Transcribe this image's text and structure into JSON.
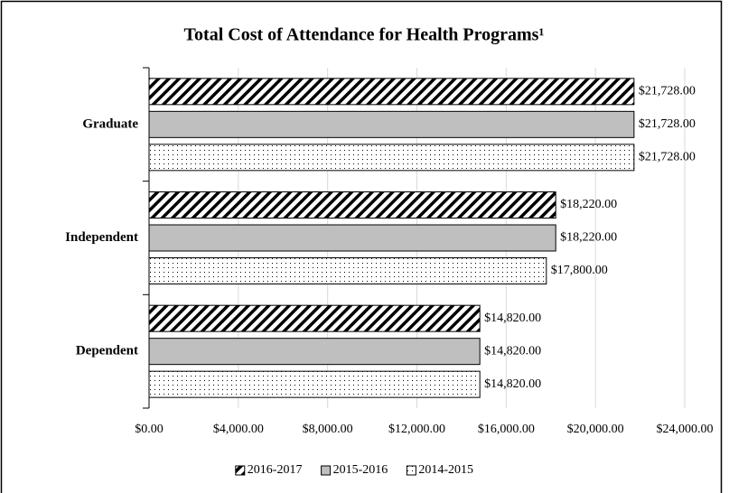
{
  "chart_data": {
    "type": "hbar",
    "title": "Total Cost of Attendance for Health Programs¹",
    "categories": [
      "Graduate",
      "Independent",
      "Dependent"
    ],
    "series": [
      {
        "name": "2016-2017",
        "color": "#000000",
        "pattern": "hatch",
        "values": [
          21728,
          18220,
          14820
        ],
        "value_labels": [
          "$21,728.00",
          "$18,220.00",
          "$14,820.00"
        ]
      },
      {
        "name": "2015-2016",
        "color": "#bfbfbf",
        "pattern": "solid",
        "values": [
          21728,
          18220,
          14820
        ],
        "value_labels": [
          "$21,728.00",
          "$18,220.00",
          "$14,820.00"
        ]
      },
      {
        "name": "2014-2015",
        "color": "#000000",
        "pattern": "dots",
        "values": [
          21728,
          17800,
          14820
        ],
        "value_labels": [
          "$21,728.00",
          "$17,800.00",
          "$14,820.00"
        ]
      }
    ],
    "xlim": [
      0,
      24000
    ],
    "xticks": [
      {
        "value": 0,
        "label": "$0.00"
      },
      {
        "value": 4000,
        "label": "$4,000.00"
      },
      {
        "value": 8000,
        "label": "$8,000.00"
      },
      {
        "value": 12000,
        "label": "$12,000.00"
      },
      {
        "value": 16000,
        "label": "$16,000.00"
      },
      {
        "value": 20000,
        "label": "$20,000.00"
      },
      {
        "value": 24000,
        "label": "$24,000.00"
      }
    ],
    "grid": true,
    "legend": "bottom"
  }
}
